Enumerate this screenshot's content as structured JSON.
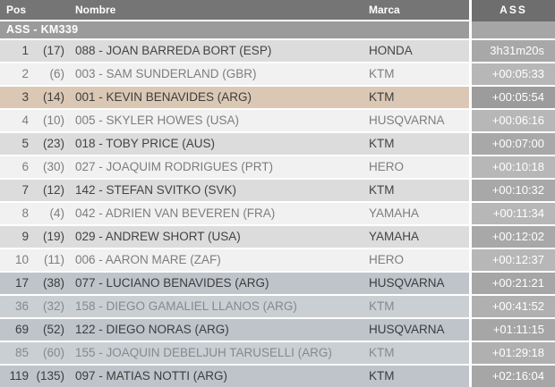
{
  "table": {
    "headers": {
      "pos": "Pos",
      "nombre": "Nombre",
      "marca": "Marca",
      "ass": "ASS"
    },
    "section_label": "ASS - KM339",
    "rows": [
      {
        "pos": "1",
        "prev": "(17)",
        "name": "088 - JOAN BARREDA BORT (ESP)",
        "brand": "HONDA",
        "time": "3h31m20s",
        "variant": "odd"
      },
      {
        "pos": "2",
        "prev": "(6)",
        "name": "003 - SAM SUNDERLAND (GBR)",
        "brand": "KTM",
        "time": "+00:05:33",
        "variant": "even"
      },
      {
        "pos": "3",
        "prev": "(14)",
        "name": "001 - KEVIN BENAVIDES (ARG)",
        "brand": "KTM",
        "time": "+00:05:54",
        "variant": "highlight"
      },
      {
        "pos": "4",
        "prev": "(10)",
        "name": "005 - SKYLER HOWES (USA)",
        "brand": "HUSQVARNA",
        "time": "+00:06:16",
        "variant": "even"
      },
      {
        "pos": "5",
        "prev": "(23)",
        "name": "018 - TOBY PRICE (AUS)",
        "brand": "KTM",
        "time": "+00:07:00",
        "variant": "odd"
      },
      {
        "pos": "6",
        "prev": "(30)",
        "name": "027 - JOAQUIM RODRIGUES (PRT)",
        "brand": "HERO",
        "time": "+00:10:18",
        "variant": "even"
      },
      {
        "pos": "7",
        "prev": "(12)",
        "name": "142 - STEFAN SVITKO (SVK)",
        "brand": "KTM",
        "time": "+00:10:32",
        "variant": "odd"
      },
      {
        "pos": "8",
        "prev": "(4)",
        "name": "042 - ADRIEN VAN BEVEREN (FRA)",
        "brand": "YAMAHA",
        "time": "+00:11:34",
        "variant": "even"
      },
      {
        "pos": "9",
        "prev": "(19)",
        "name": "029 - ANDREW SHORT (USA)",
        "brand": "YAMAHA",
        "time": "+00:12:02",
        "variant": "odd"
      },
      {
        "pos": "10",
        "prev": "(11)",
        "name": "006 - AARON MARE (ZAF)",
        "brand": "HERO",
        "time": "+00:12:37",
        "variant": "even"
      },
      {
        "pos": "17",
        "prev": "(38)",
        "name": "077 - LUCIANO BENAVIDES (ARG)",
        "brand": "HUSQVARNA",
        "time": "+00:21:21",
        "variant": "arg-odd"
      },
      {
        "pos": "36",
        "prev": "(32)",
        "name": "158 - DIEGO GAMALIEL LLANOS (ARG)",
        "brand": "KTM",
        "time": "+00:41:52",
        "variant": "arg-even"
      },
      {
        "pos": "69",
        "prev": "(52)",
        "name": "122 - DIEGO NORAS (ARG)",
        "brand": "HUSQVARNA",
        "time": "+01:11:15",
        "variant": "arg-odd"
      },
      {
        "pos": "85",
        "prev": "(60)",
        "name": "155 - JOAQUIN DEBELJUH TARUSELLI (ARG)",
        "brand": "KTM",
        "time": "+01:29:18",
        "variant": "arg-even"
      },
      {
        "pos": "119",
        "prev": "(135)",
        "name": "097 - MATIAS NOTTI (ARG)",
        "brand": "KTM",
        "time": "+02:16:04",
        "variant": "arg-odd"
      }
    ]
  },
  "colors": {
    "header_bg": "#757575",
    "section_bg": "#9b9b9b",
    "row_odd_bg": "#dcdcdc",
    "row_even_bg": "#f1f1f1",
    "row_highlight_bg": "#dbc8b4",
    "row_arg_odd_bg": "#bec4ca",
    "row_arg_even_bg": "#cacfd4",
    "time_cell_bg": "#a8a8a8",
    "time_text": "#ffffff"
  }
}
